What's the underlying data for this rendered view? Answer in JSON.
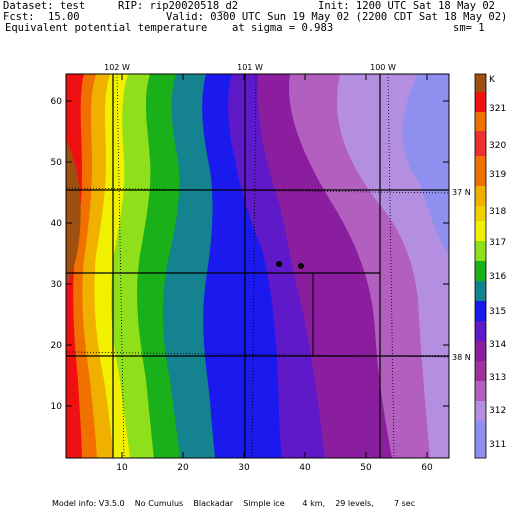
{
  "header": {
    "dataset_label": "Dataset: test",
    "rip_label": "RIP: rip20020518_d2",
    "init_label": "Init: 1200 UTC Sat 18 May 02",
    "fcst_label": "Fcst:",
    "fcst_value": "15.00",
    "valid_label": "Valid: 0300 UTC Sun 19 May 02 (2200 CDT Sat 18 May 02)",
    "field_name": "Equivalent potential temperature",
    "sigma_label": "at sigma = 0.983",
    "sm_label": "sm= 1"
  },
  "footer": {
    "model_info": "Model info: V3.5.0    No Cumulus    Blackadar    Simple ice       4 km,    29 levels,        7 sec"
  },
  "map": {
    "x_ticks": [
      "10",
      "20",
      "30",
      "40",
      "50",
      "60"
    ],
    "y_ticks": [
      "10",
      "20",
      "30",
      "40",
      "50",
      "60"
    ],
    "longitude_labels": [
      "102 W",
      "101 W",
      "100 W"
    ],
    "latitude_labels": [
      "37 N",
      "38 N"
    ],
    "colorbar_unit": "K",
    "colorbar_levels": [
      "311",
      "312",
      "313",
      "314",
      "315",
      "316",
      "317",
      "318",
      "319",
      "320",
      "321"
    ],
    "colorbar_colors": [
      "#8f8fef",
      "#b48ee0",
      "#b25fbf",
      "#8a1e9e",
      "#5f19c8",
      "#1a1aee",
      "#15838f",
      "#19b019",
      "#8fe01a",
      "#f0f000",
      "#f0b000",
      "#f07000",
      "#ef1111",
      "#9f5010"
    ],
    "stations": [
      "station-1",
      "station-2"
    ]
  }
}
